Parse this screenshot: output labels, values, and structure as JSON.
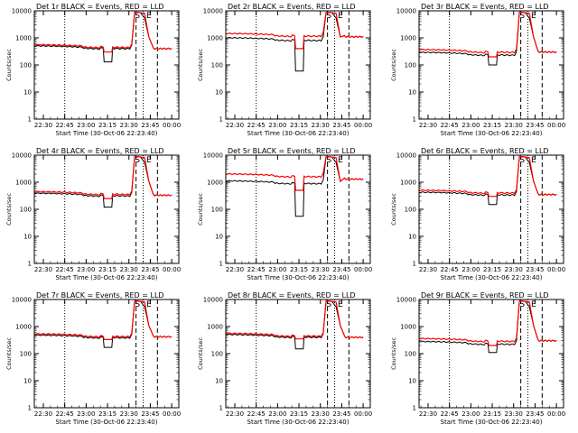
{
  "page": {
    "xlabel": "Start Time (30-Oct-06 22:23:40)",
    "ylabel": "Counts/sec",
    "x_ticks": [
      "22:30",
      "22:45",
      "23:00",
      "23:15",
      "23:30",
      "23:45",
      "00:00"
    ],
    "y_ticks": [
      "1",
      "10",
      "100",
      "1000",
      "10000"
    ],
    "title_suffix": "BLACK = Events, RED = LLD",
    "marker_labels": [
      "S",
      "E"
    ]
  },
  "colors": {
    "events": "#000000",
    "lld": "#ff0000"
  },
  "chart_data": [
    {
      "type": "line",
      "title": "Det 1r BLACK = Events, RED = LLD",
      "xlabel": "Start Time (30-Oct-06 22:23:40)",
      "ylabel": "Counts/sec",
      "y_scale": "log",
      "ylim": [
        1,
        10000
      ],
      "xlim": [
        "22:23:40",
        "00:05"
      ],
      "x_ticks": [
        "22:30",
        "22:45",
        "23:00",
        "23:15",
        "23:30",
        "23:45",
        "00:00"
      ],
      "y_ticks": [
        1,
        10,
        100,
        1000,
        10000
      ],
      "events_level": 450,
      "lld_level": 500,
      "dip": [
        130,
        300
      ],
      "peak": 9000,
      "post_level": 400,
      "series": [
        {
          "name": "Events",
          "color": "#000000"
        },
        {
          "name": "LLD",
          "color": "#ff0000"
        }
      ],
      "vlines_dotted": [
        "22:45",
        "23:40"
      ],
      "vlines_dashed": [
        "23:35",
        "23:50"
      ],
      "annotation": "S E"
    },
    {
      "type": "line",
      "title": "Det 2r BLACK = Events, RED = LLD",
      "xlabel": "Start Time (30-Oct-06 22:23:40)",
      "ylabel": "Counts/sec",
      "y_scale": "log",
      "ylim": [
        1,
        10000
      ],
      "xlim": [
        "22:23:40",
        "00:05"
      ],
      "x_ticks": [
        "22:30",
        "22:45",
        "23:00",
        "23:15",
        "23:30",
        "23:45",
        "00:00"
      ],
      "y_ticks": [
        1,
        10,
        100,
        1000,
        10000
      ],
      "events_level": 900,
      "lld_level": 1300,
      "dip": [
        60,
        400
      ],
      "peak": 9000,
      "post_level": 1100,
      "series": [
        {
          "name": "Events",
          "color": "#000000"
        },
        {
          "name": "LLD",
          "color": "#ff0000"
        }
      ],
      "vlines_dotted": [
        "22:45",
        "23:40"
      ],
      "vlines_dashed": [
        "23:35",
        "23:50"
      ],
      "annotation": "S E"
    },
    {
      "type": "line",
      "title": "Det 3r BLACK = Events, RED = LLD",
      "xlabel": "Start Time (30-Oct-06 22:23:40)",
      "ylabel": "Counts/sec",
      "y_scale": "log",
      "ylim": [
        1,
        10000
      ],
      "xlim": [
        "22:23:40",
        "00:05"
      ],
      "x_ticks": [
        "22:30",
        "22:45",
        "23:00",
        "23:15",
        "23:30",
        "23:45",
        "00:00"
      ],
      "y_ticks": [
        1,
        10,
        100,
        1000,
        10000
      ],
      "events_level": 260,
      "lld_level": 330,
      "dip": [
        100,
        200
      ],
      "peak": 9000,
      "post_level": 300,
      "series": [
        {
          "name": "Events",
          "color": "#000000"
        },
        {
          "name": "LLD",
          "color": "#ff0000"
        }
      ],
      "vlines_dotted": [
        "22:45",
        "23:40"
      ],
      "vlines_dashed": [
        "23:35",
        "23:50"
      ],
      "annotation": "S E"
    },
    {
      "type": "line",
      "title": "Det 4r BLACK = Events, RED = LLD",
      "xlabel": "Start Time (30-Oct-06 22:23:40)",
      "ylabel": "Counts/sec",
      "y_scale": "log",
      "ylim": [
        1,
        10000
      ],
      "xlim": [
        "22:23:40",
        "00:05"
      ],
      "x_ticks": [
        "22:30",
        "22:45",
        "23:00",
        "23:15",
        "23:30",
        "23:45",
        "00:00"
      ],
      "y_ticks": [
        1,
        10,
        100,
        1000,
        10000
      ],
      "events_level": 350,
      "lld_level": 400,
      "dip": [
        120,
        250
      ],
      "peak": 9000,
      "post_level": 330,
      "series": [
        {
          "name": "Events",
          "color": "#000000"
        },
        {
          "name": "LLD",
          "color": "#ff0000"
        }
      ],
      "vlines_dotted": [
        "22:45",
        "23:40"
      ],
      "vlines_dashed": [
        "23:35",
        "23:50"
      ],
      "annotation": "S E"
    },
    {
      "type": "line",
      "title": "Det 5r BLACK = Events, RED = LLD",
      "xlabel": "Start Time (30-Oct-06 22:23:40)",
      "ylabel": "Counts/sec",
      "y_scale": "log",
      "ylim": [
        1,
        10000
      ],
      "xlim": [
        "22:23:40",
        "00:05"
      ],
      "x_ticks": [
        "22:30",
        "22:45",
        "23:00",
        "23:15",
        "23:30",
        "23:45",
        "00:00"
      ],
      "y_ticks": [
        1,
        10,
        100,
        1000,
        10000
      ],
      "events_level": 1000,
      "lld_level": 1800,
      "dip": [
        55,
        500
      ],
      "peak": 9000,
      "post_level": 1300,
      "series": [
        {
          "name": "Events",
          "color": "#000000"
        },
        {
          "name": "LLD",
          "color": "#ff0000"
        }
      ],
      "vlines_dotted": [
        "22:45",
        "23:40"
      ],
      "vlines_dashed": [
        "23:35",
        "23:50"
      ],
      "annotation": "S E"
    },
    {
      "type": "line",
      "title": "Det 6r BLACK = Events, RED = LLD",
      "xlabel": "Start Time (30-Oct-06 22:23:40)",
      "ylabel": "Counts/sec",
      "y_scale": "log",
      "ylim": [
        1,
        10000
      ],
      "xlim": [
        "22:23:40",
        "00:05"
      ],
      "x_ticks": [
        "22:30",
        "22:45",
        "23:00",
        "23:15",
        "23:30",
        "23:45",
        "00:00"
      ],
      "y_ticks": [
        1,
        10,
        100,
        1000,
        10000
      ],
      "events_level": 380,
      "lld_level": 450,
      "dip": [
        150,
        300
      ],
      "peak": 9000,
      "post_level": 350,
      "series": [
        {
          "name": "Events",
          "color": "#000000"
        },
        {
          "name": "LLD",
          "color": "#ff0000"
        }
      ],
      "vlines_dotted": [
        "22:45",
        "23:40"
      ],
      "vlines_dashed": [
        "23:35",
        "23:50"
      ],
      "annotation": "S E"
    },
    {
      "type": "line",
      "title": "Det 7r BLACK = Events, RED = LLD",
      "xlabel": "Start Time (30-Oct-06 22:23:40)",
      "ylabel": "Counts/sec",
      "y_scale": "log",
      "ylim": [
        1,
        10000
      ],
      "xlim": [
        "22:23:40",
        "00:05"
      ],
      "x_ticks": [
        "22:30",
        "22:45",
        "23:00",
        "23:15",
        "23:30",
        "23:45",
        "00:00"
      ],
      "y_ticks": [
        1,
        10,
        100,
        1000,
        10000
      ],
      "events_level": 430,
      "lld_level": 480,
      "dip": [
        170,
        330
      ],
      "peak": 9000,
      "post_level": 420,
      "series": [
        {
          "name": "Events",
          "color": "#000000"
        },
        {
          "name": "LLD",
          "color": "#ff0000"
        }
      ],
      "vlines_dotted": [
        "22:45",
        "23:40"
      ],
      "vlines_dashed": [
        "23:35",
        "23:50"
      ],
      "annotation": "S E"
    },
    {
      "type": "line",
      "title": "Det 8r BLACK = Events, RED = LLD",
      "xlabel": "Start Time (30-Oct-06 22:23:40)",
      "ylabel": "Counts/sec",
      "y_scale": "log",
      "ylim": [
        1,
        10000
      ],
      "xlim": [
        "22:23:40",
        "00:05"
      ],
      "x_ticks": [
        "22:30",
        "22:45",
        "23:00",
        "23:15",
        "23:30",
        "23:45",
        "00:00"
      ],
      "y_ticks": [
        1,
        10,
        100,
        1000,
        10000
      ],
      "events_level": 450,
      "lld_level": 500,
      "dip": [
        150,
        350
      ],
      "peak": 9000,
      "post_level": 400,
      "series": [
        {
          "name": "Events",
          "color": "#000000"
        },
        {
          "name": "LLD",
          "color": "#ff0000"
        }
      ],
      "vlines_dotted": [
        "22:45",
        "23:40"
      ],
      "vlines_dashed": [
        "23:35",
        "23:50"
      ],
      "annotation": "S E"
    },
    {
      "type": "line",
      "title": "Det 9r BLACK = Events, RED = LLD",
      "xlabel": "Start Time (30-Oct-06 22:23:40)",
      "ylabel": "Counts/sec",
      "y_scale": "log",
      "ylim": [
        1,
        10000
      ],
      "xlim": [
        "22:23:40",
        "00:05"
      ],
      "x_ticks": [
        "22:30",
        "22:45",
        "23:00",
        "23:15",
        "23:30",
        "23:45",
        "00:00"
      ],
      "y_ticks": [
        1,
        10,
        100,
        1000,
        10000
      ],
      "events_level": 250,
      "lld_level": 320,
      "dip": [
        110,
        200
      ],
      "peak": 9000,
      "post_level": 300,
      "series": [
        {
          "name": "Events",
          "color": "#000000"
        },
        {
          "name": "LLD",
          "color": "#ff0000"
        }
      ],
      "vlines_dotted": [
        "22:45",
        "23:40"
      ],
      "vlines_dashed": [
        "23:35",
        "23:50"
      ],
      "annotation": "S E"
    }
  ]
}
